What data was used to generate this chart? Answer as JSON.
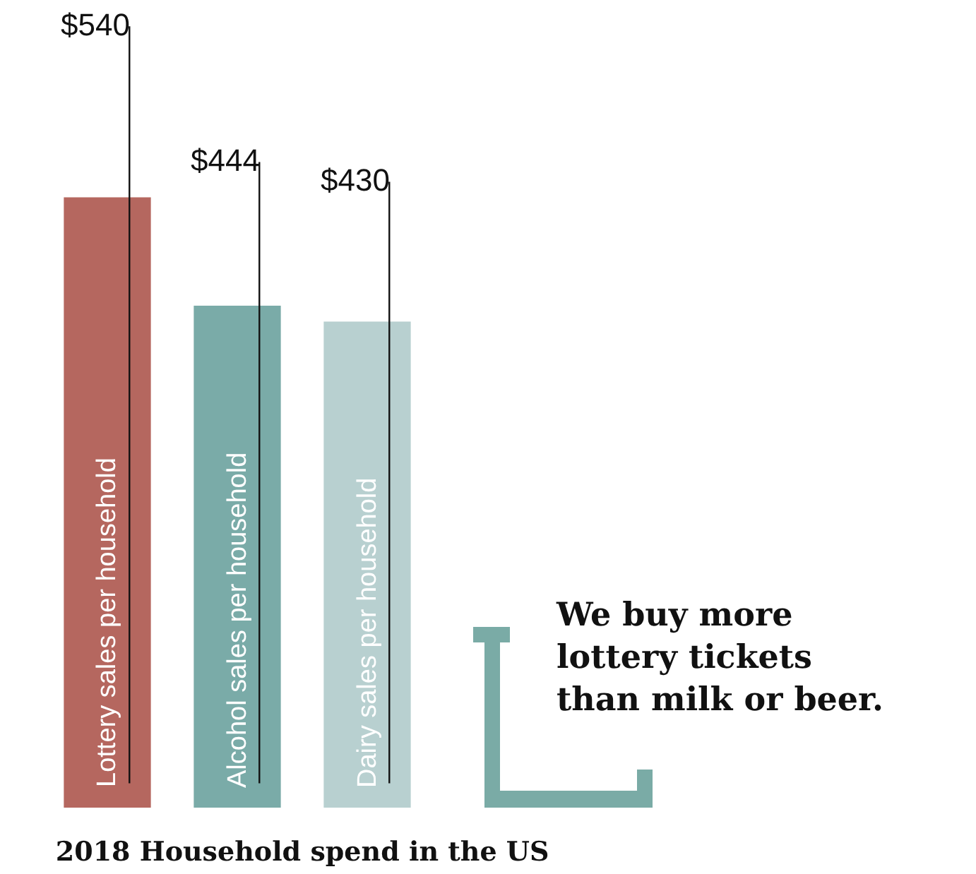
{
  "chart_data": {
    "type": "bar",
    "title": "2018 Household spend in the US",
    "categories": [
      "Lottery sales per household",
      "Alcohol sales per household",
      "Dairy sales per household"
    ],
    "values": [
      540,
      444,
      430
    ],
    "colors": [
      "#b5675f",
      "#7aaba8",
      "#b8d0d0"
    ],
    "value_labels": [
      "$540",
      "$444",
      "$430"
    ],
    "tick_labels": "x",
    "annotations": [
      "We buy more\nlottery tickets\nthan milk or beer."
    ]
  }
}
